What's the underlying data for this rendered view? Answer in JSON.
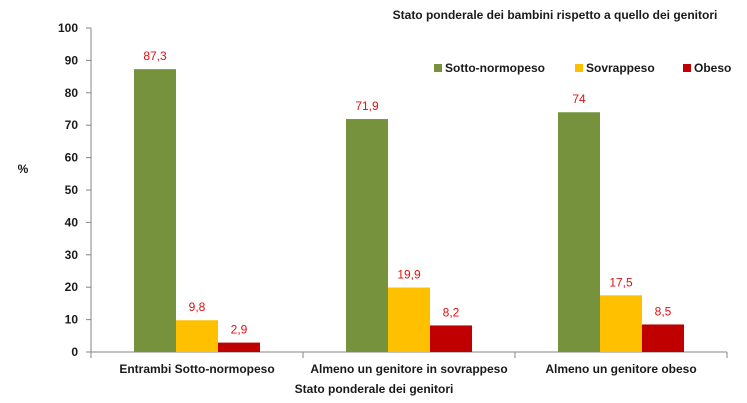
{
  "chart_data": {
    "type": "bar",
    "title": "Stato ponderale dei bambini rispetto a quello dei genitori",
    "xlabel": "Stato ponderale dei genitori",
    "ylabel": "%",
    "ylim": [
      0,
      100
    ],
    "yticks": [
      0,
      10,
      20,
      30,
      40,
      50,
      60,
      70,
      80,
      90,
      100
    ],
    "grid": false,
    "legend_position": "top-right",
    "categories": [
      "Entrambi Sotto-normopeso",
      "Almeno un genitore in sovrappeso",
      "Almeno un genitore obeso"
    ],
    "series": [
      {
        "name": "Sotto-normopeso",
        "color": "#76923c",
        "values": [
          87.3,
          71.9,
          74
        ],
        "labels": [
          "87,3",
          "71,9",
          "74"
        ]
      },
      {
        "name": "Sovrappeso",
        "color": "#ffc000",
        "values": [
          9.8,
          19.9,
          17.5
        ],
        "labels": [
          "9,8",
          "19,9",
          "17,5"
        ]
      },
      {
        "name": "Obeso",
        "color": "#c00000",
        "values": [
          2.9,
          8.2,
          8.5
        ],
        "labels": [
          "2,9",
          "8,2",
          "8,5"
        ]
      }
    ]
  }
}
